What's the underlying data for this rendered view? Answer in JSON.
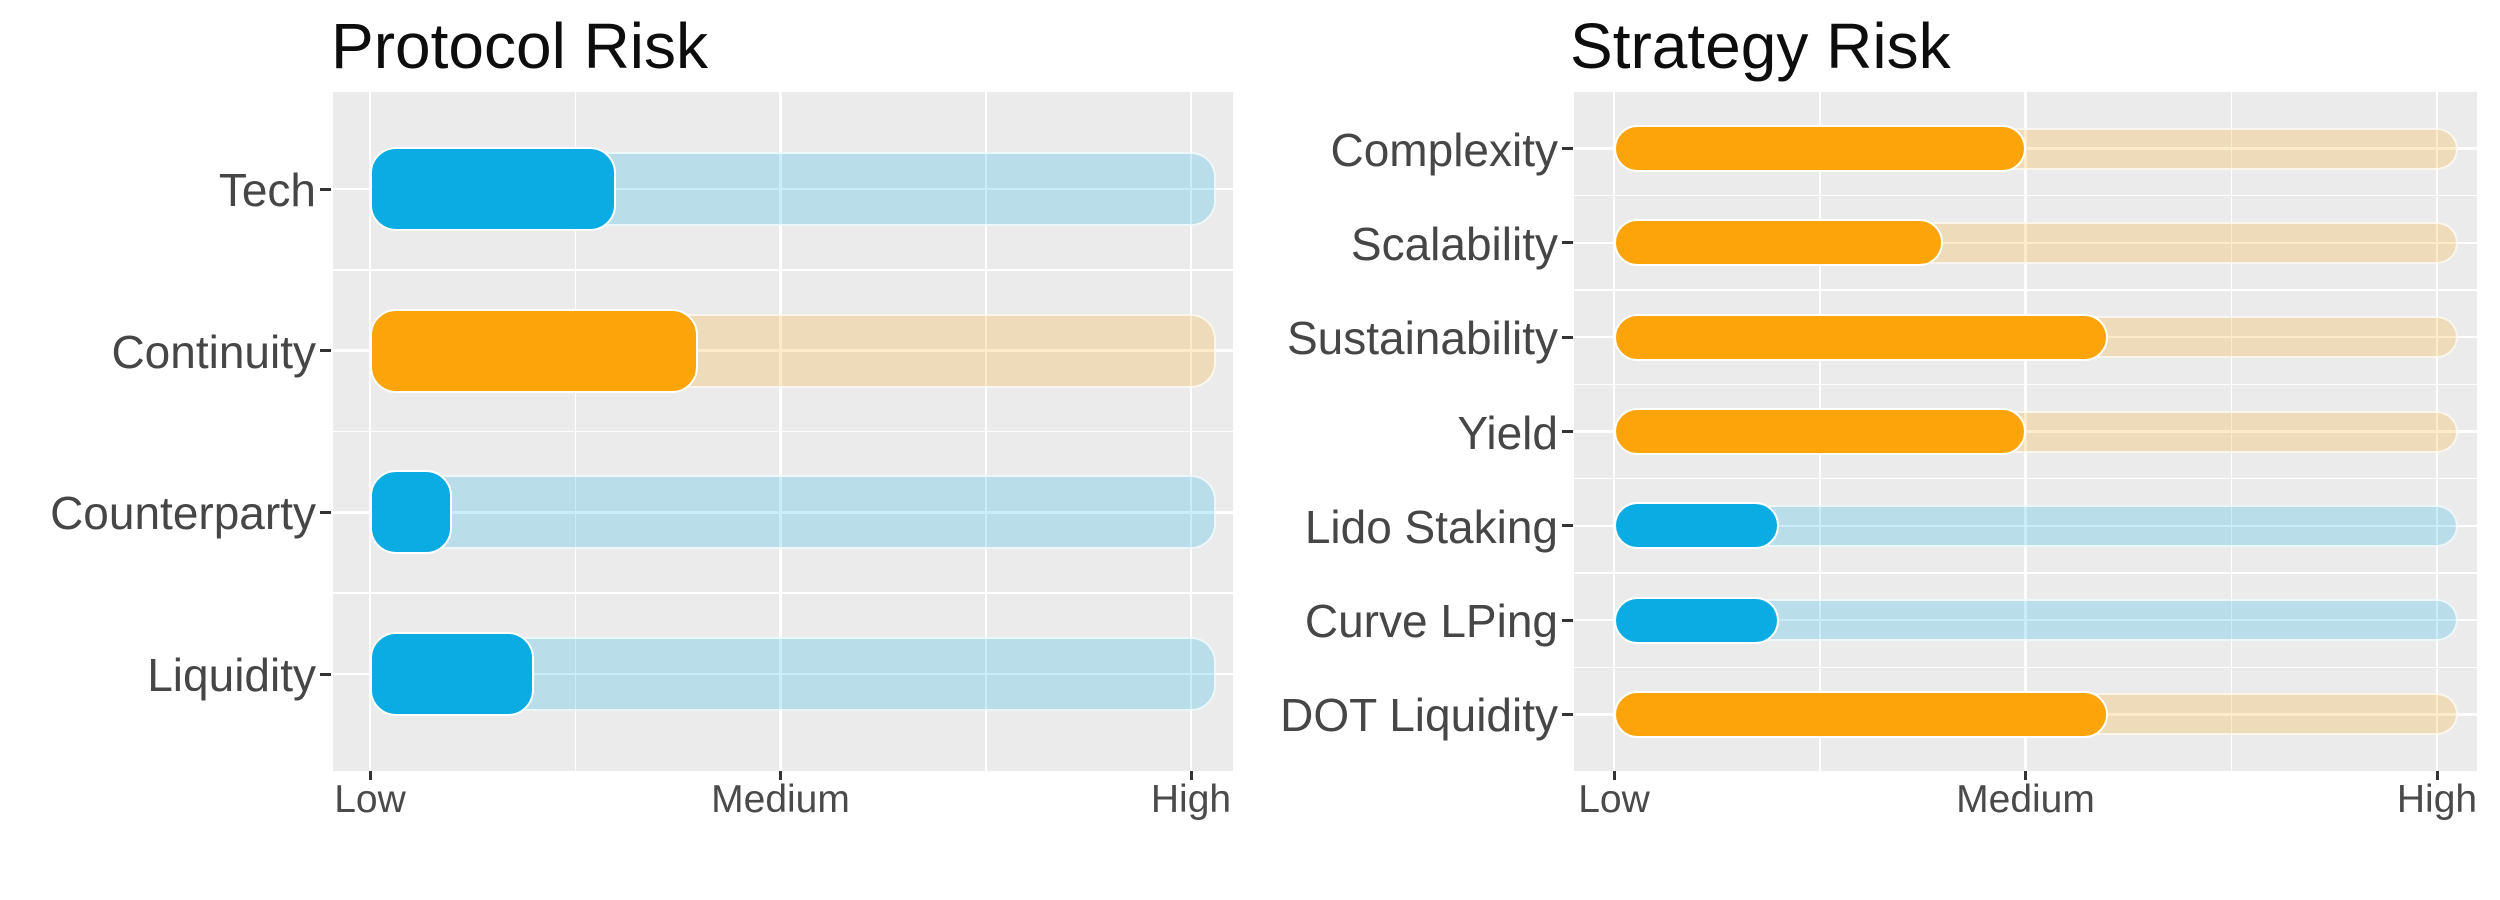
{
  "palette": {
    "blue": "#0AACE3",
    "orange": "#FCA40A",
    "track_blue": "rgba(10,172,227,0.22)",
    "track_orange": "rgba(252,164,10,0.22)",
    "panel_background": "#EBEBEB",
    "gridline": "#FFFFFF",
    "axis_text": "#464646",
    "tick_mark": "#333333",
    "title_text": "#0D0D0D"
  },
  "charts": [
    {
      "title": "Protocol Risk",
      "chart_data": {
        "type": "bar",
        "orientation": "horizontal-bullet",
        "categories": [
          "Tech",
          "Continuity",
          "Counterparty",
          "Liquidity"
        ],
        "values": [
          1.6,
          1.8,
          1.2,
          1.4
        ],
        "bar_colors": [
          "blue",
          "orange",
          "blue",
          "blue"
        ],
        "track_end_value": 3,
        "x_tick_labels": [
          "Low",
          "Medium",
          "High"
        ],
        "x_tick_values": [
          1,
          2,
          3
        ],
        "x_range": [
          1,
          3
        ],
        "grid": "white major and minor gridlines on grey panel",
        "legend": false,
        "xlabel": "",
        "ylabel": ""
      }
    },
    {
      "title": "Strategy Risk",
      "chart_data": {
        "type": "bar",
        "orientation": "horizontal-bullet",
        "categories": [
          "Complexity",
          "Scalability",
          "Sustainability",
          "Yield",
          "Lido Staking",
          "Curve LPing",
          "DOT Liquidity"
        ],
        "values": [
          2.0,
          1.8,
          2.2,
          2.0,
          1.4,
          1.4,
          2.2
        ],
        "bar_colors": [
          "orange",
          "orange",
          "orange",
          "orange",
          "blue",
          "blue",
          "orange"
        ],
        "track_end_value": 3,
        "x_tick_labels": [
          "Low",
          "Medium",
          "High"
        ],
        "x_tick_values": [
          1,
          2,
          3
        ],
        "x_range": [
          1,
          3
        ],
        "grid": "white major and minor gridlines on grey panel",
        "legend": false,
        "xlabel": "",
        "ylabel": ""
      }
    }
  ]
}
